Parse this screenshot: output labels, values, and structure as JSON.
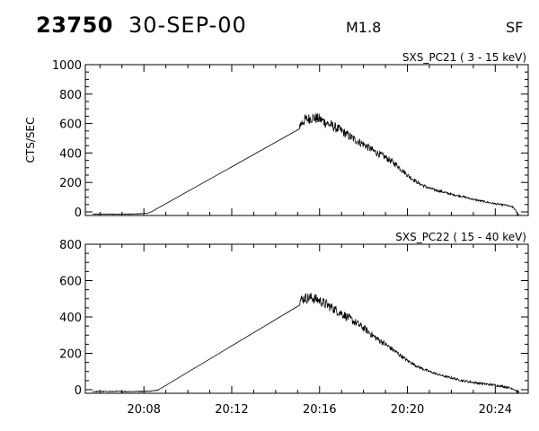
{
  "header": {
    "event_id": "23750",
    "date": "30-SEP-00",
    "flare_class": "M1.8",
    "flare_code": "SF"
  },
  "chart_data": [
    {
      "type": "line",
      "title": "SXS_PC21  (  3 - 15 keV)",
      "ylabel": "CTS/SEC",
      "xlabel": "",
      "ylim": [
        0,
        1000
      ],
      "yticks": [
        0,
        200,
        400,
        600,
        800,
        1000
      ],
      "xlim": [
        "20:05:20",
        "20:25:30"
      ],
      "xticks": [
        "20:08",
        "20:12",
        "20:16",
        "20:20",
        "20:24"
      ],
      "grid": false,
      "series": [
        {
          "x": [
            "20:05:40",
            "20:06:30",
            "20:07:30",
            "20:08:10",
            "20:08:20",
            "20:15:05",
            "20:15:20",
            "20:15:40",
            "20:16:00",
            "20:16:30",
            "20:17:00",
            "20:17:30",
            "20:18:00",
            "20:18:30",
            "20:19:00",
            "20:19:30",
            "20:20:00",
            "20:20:30",
            "20:21:00",
            "20:21:30",
            "20:22:00",
            "20:22:30",
            "20:23:00",
            "20:23:30",
            "20:24:00",
            "20:24:30",
            "20:24:50",
            "20:25:00",
            "20:25:05"
          ],
          "y": [
            -15,
            -15,
            -15,
            -10,
            0,
            590,
            625,
            640,
            630,
            590,
            550,
            500,
            460,
            410,
            370,
            320,
            250,
            195,
            160,
            140,
            120,
            105,
            85,
            70,
            55,
            45,
            30,
            -10,
            -20
          ]
        }
      ]
    },
    {
      "type": "line",
      "title": "SXS_PC22  ( 15 - 40 keV)",
      "ylabel": "",
      "xlabel": "",
      "ylim": [
        0,
        800
      ],
      "yticks": [
        0,
        200,
        400,
        600,
        800
      ],
      "xlim": [
        "20:05:20",
        "20:25:30"
      ],
      "xticks": [
        "20:08",
        "20:12",
        "20:16",
        "20:20",
        "20:24"
      ],
      "grid": false,
      "series": [
        {
          "x": [
            "20:05:40",
            "20:06:30",
            "20:07:30",
            "20:08:20",
            "20:08:40",
            "20:15:05",
            "20:15:20",
            "20:15:40",
            "20:16:00",
            "20:16:30",
            "20:17:00",
            "20:17:30",
            "20:18:00",
            "20:18:30",
            "20:19:00",
            "20:19:30",
            "20:20:00",
            "20:20:30",
            "20:21:00",
            "20:21:30",
            "20:22:00",
            "20:22:30",
            "20:23:00",
            "20:23:30",
            "20:24:00",
            "20:24:30",
            "20:24:50",
            "20:25:00",
            "20:25:05"
          ],
          "y": [
            -10,
            -10,
            -10,
            -8,
            0,
            490,
            505,
            505,
            490,
            455,
            420,
            380,
            340,
            290,
            250,
            205,
            160,
            125,
            100,
            80,
            65,
            50,
            40,
            32,
            25,
            15,
            5,
            -10,
            -15
          ]
        }
      ]
    }
  ]
}
